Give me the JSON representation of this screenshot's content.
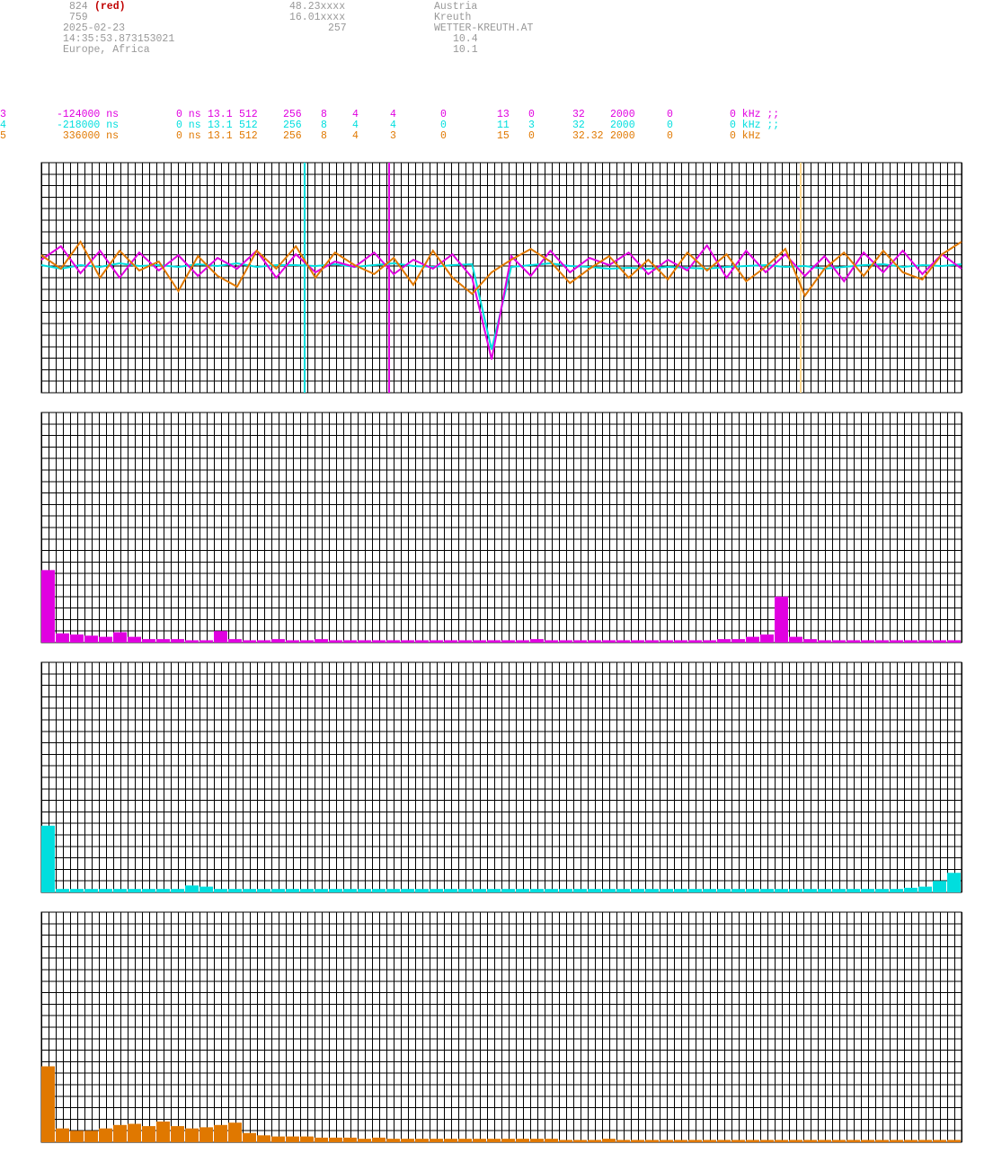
{
  "header": {
    "lines": [
      [
        "824",
        "(red)",
        "48.23xxxx",
        "Austria"
      ],
      [
        "759",
        "16.01xxxx",
        "Kreuth"
      ],
      [
        "2025-02-23",
        "257",
        "WETTER-KREUTH.AT"
      ],
      [
        "14:35:53.873153021",
        "10.4"
      ],
      [
        "Europe, Africa",
        "10.1"
      ]
    ]
  },
  "channels": [
    {
      "color": "#e000e0",
      "cells": [
        "3",
        "-124000 ns",
        "0 ns",
        "13.1",
        "512",
        "256",
        "8",
        "4",
        "4",
        "0",
        "13",
        "0",
        "32",
        "2000",
        "0",
        "0 kHz ;;"
      ]
    },
    {
      "color": "#00dede",
      "cells": [
        "4",
        "-218000 ns",
        "0 ns",
        "13.1",
        "512",
        "256",
        "8",
        "4",
        "4",
        "0",
        "11",
        "3",
        "32",
        "2000",
        "0",
        "0 kHz ;;"
      ]
    },
    {
      "color": "#e07800",
      "cells": [
        "5",
        "336000 ns",
        "0 ns",
        "13.1",
        "512",
        "256",
        "8",
        "4",
        "3",
        "0",
        "15",
        "0",
        "32.32",
        "2000",
        "0",
        "0 kHz"
      ]
    }
  ],
  "chart_data": [
    {
      "type": "line",
      "xlim": [
        0,
        47
      ],
      "ylim": [
        -128,
        128
      ],
      "x": [
        0,
        1,
        2,
        3,
        4,
        5,
        6,
        7,
        8,
        9,
        10,
        11,
        12,
        13,
        14,
        15,
        16,
        17,
        18,
        19,
        20,
        21,
        22,
        23,
        24,
        25,
        26,
        27,
        28,
        29,
        30,
        31,
        32,
        33,
        34,
        35,
        36,
        37,
        38,
        39,
        40,
        41,
        42,
        43,
        44,
        45,
        46,
        47
      ],
      "series": [
        {
          "color": "#00dede",
          "values": [
            14,
            10,
            14,
            12,
            16,
            13,
            14,
            12,
            15,
            13,
            16,
            12,
            14,
            14,
            13,
            15,
            12,
            14,
            16,
            13,
            12,
            14,
            15,
            -80,
            12,
            14,
            16,
            13,
            12,
            10,
            11,
            10,
            12,
            11,
            10,
            12,
            13,
            14,
            12,
            13,
            10,
            12,
            14,
            15,
            12,
            14,
            13,
            15
          ]
        },
        {
          "color": "#e000e0",
          "values": [
            20,
            35,
            5,
            30,
            0,
            28,
            8,
            25,
            2,
            22,
            10,
            30,
            0,
            26,
            6,
            18,
            12,
            28,
            4,
            20,
            10,
            26,
            0,
            -91,
            24,
            2,
            30,
            6,
            22,
            14,
            28,
            4,
            20,
            8,
            36,
            0,
            30,
            6,
            26,
            2,
            24,
            -4,
            28,
            6,
            30,
            4,
            26,
            10
          ]
        },
        {
          "color": "#e07800",
          "values": [
            25,
            10,
            40,
            0,
            30,
            8,
            18,
            -15,
            24,
            2,
            -10,
            30,
            10,
            35,
            0,
            28,
            14,
            4,
            22,
            -8,
            30,
            0,
            -18,
            6,
            20,
            32,
            18,
            -6,
            10,
            24,
            0,
            20,
            -2,
            28,
            8,
            26,
            -4,
            12,
            32,
            -20,
            10,
            28,
            2,
            30,
            6,
            -2,
            26,
            40
          ]
        }
      ]
    },
    {
      "type": "bar",
      "color": "#e000e0",
      "ylim": [
        0,
        20
      ],
      "values": [
        6.3,
        0.8,
        0.7,
        0.6,
        0.5,
        0.9,
        0.5,
        0.3,
        0.3,
        0.3,
        0.2,
        0.2,
        1.0,
        0.3,
        0.2,
        0.2,
        0.3,
        0.2,
        0.2,
        0.3,
        0.2,
        0.2,
        0.2,
        0.2,
        0.2,
        0.2,
        0.2,
        0.2,
        0.2,
        0.2,
        0.2,
        0.2,
        0.2,
        0.2,
        0.3,
        0.2,
        0.2,
        0.2,
        0.2,
        0.2,
        0.2,
        0.2,
        0.2,
        0.2,
        0.2,
        0.2,
        0.2,
        0.3,
        0.3,
        0.5,
        0.7,
        4.0,
        0.5,
        0.3,
        0.2,
        0.2,
        0.2,
        0.2,
        0.2,
        0.2,
        0.2,
        0.2,
        0.2,
        0.2
      ]
    },
    {
      "type": "bar",
      "color": "#00dede",
      "ylim": [
        0,
        20
      ],
      "values": [
        5.8,
        0.3,
        0.3,
        0.3,
        0.3,
        0.3,
        0.3,
        0.3,
        0.3,
        0.3,
        0.6,
        0.5,
        0.3,
        0.3,
        0.3,
        0.3,
        0.3,
        0.3,
        0.3,
        0.3,
        0.3,
        0.3,
        0.3,
        0.3,
        0.3,
        0.3,
        0.3,
        0.3,
        0.3,
        0.3,
        0.3,
        0.3,
        0.3,
        0.3,
        0.3,
        0.3,
        0.3,
        0.3,
        0.3,
        0.3,
        0.3,
        0.3,
        0.3,
        0.3,
        0.3,
        0.3,
        0.3,
        0.3,
        0.3,
        0.3,
        0.3,
        0.3,
        0.3,
        0.3,
        0.3,
        0.3,
        0.3,
        0.3,
        0.3,
        0.3,
        0.4,
        0.5,
        1.0,
        1.7
      ]
    },
    {
      "type": "bar",
      "color": "#e07800",
      "ylim": [
        0,
        20
      ],
      "values": [
        6.6,
        1.2,
        1.0,
        1.0,
        1.2,
        1.5,
        1.6,
        1.4,
        1.8,
        1.4,
        1.2,
        1.3,
        1.5,
        1.7,
        0.8,
        0.6,
        0.5,
        0.5,
        0.5,
        0.4,
        0.4,
        0.4,
        0.3,
        0.4,
        0.3,
        0.3,
        0.3,
        0.3,
        0.3,
        0.3,
        0.3,
        0.3,
        0.3,
        0.3,
        0.3,
        0.3,
        0.2,
        0.2,
        0.2,
        0.3,
        0.2,
        0.2,
        0.2,
        0.2,
        0.2,
        0.2,
        0.2,
        0.2,
        0.2,
        0.2,
        0.2,
        0.2,
        0.2,
        0.2,
        0.2,
        0.2,
        0.2,
        0.2,
        0.2,
        0.2,
        0.2,
        0.2,
        0.2,
        0.2
      ]
    }
  ]
}
